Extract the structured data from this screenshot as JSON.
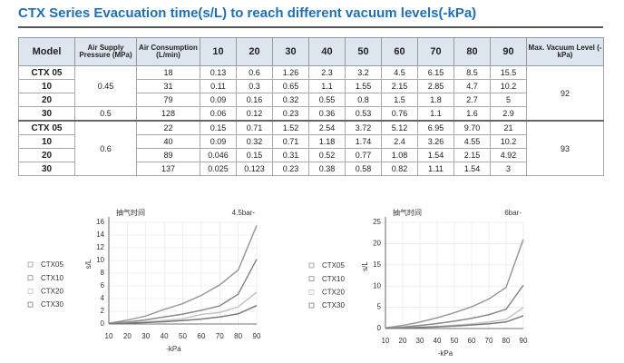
{
  "title": "CTX Series Evacuation time(s/L) to reach different vacuum levels(-kPa)",
  "table": {
    "header": [
      "Model",
      "Air Supply Pressure (MPa)",
      "Air Consumption (L/min)",
      "10",
      "20",
      "30",
      "40",
      "50",
      "60",
      "70",
      "80",
      "90",
      "Max. Vacuum Level (-kPa)"
    ],
    "rows": [
      [
        "CTX 05",
        "0.45",
        "18",
        "0.13",
        "0.6",
        "1.26",
        "2.3",
        "3.2",
        "4.5",
        "6.15",
        "8.5",
        "15.5",
        "92"
      ],
      [
        "10",
        null,
        "31",
        "0.11",
        "0.3",
        "0.65",
        "1.1",
        "1.55",
        "2.15",
        "2.85",
        "4.7",
        "10.2",
        null
      ],
      [
        "20",
        null,
        "79",
        "0.09",
        "0.16",
        "0.32",
        "0.55",
        "0.8",
        "1.5",
        "1.8",
        "2.7",
        "5",
        null
      ],
      [
        "30",
        "0.5",
        "128",
        "0.06",
        "0.12",
        "0.23",
        "0.36",
        "0.53",
        "0.76",
        "1.1",
        "1.6",
        "2.9",
        null
      ],
      [
        "CTX 05",
        "0.6",
        "22",
        "0.15",
        "0.71",
        "1.52",
        "2.54",
        "3.72",
        "5.12",
        "6.95",
        "9.70",
        "21",
        "93"
      ],
      [
        "10",
        null,
        "40",
        "0.09",
        "0.32",
        "0.71",
        "1.18",
        "1.74",
        "2.4",
        "3.26",
        "4.55",
        "10.2",
        null
      ],
      [
        "20",
        null,
        "89",
        "0.046",
        "0.15",
        "0.31",
        "0.52",
        "0.77",
        "1.08",
        "1.54",
        "2.15",
        "4.92",
        null
      ],
      [
        "30",
        null,
        "137",
        "0.025",
        "0.123",
        "0.23",
        "0.38",
        "0.58",
        "0.82",
        "1.11",
        "1.54",
        "3",
        null
      ]
    ]
  },
  "chart_data": [
    {
      "type": "line",
      "title": "抽气时间",
      "subtitle": "4.5bar-",
      "xlabel": "-kPa",
      "ylabel": "s/L",
      "x": [
        10,
        20,
        30,
        40,
        50,
        60,
        70,
        80,
        90
      ],
      "xlim": [
        10,
        90
      ],
      "xticks": [
        10,
        20,
        30,
        40,
        50,
        60,
        70,
        80,
        90
      ],
      "ylim": [
        0,
        16
      ],
      "yticks": [
        0,
        2,
        4,
        6,
        8,
        10,
        12,
        14,
        16
      ],
      "grid": true,
      "series": [
        {
          "name": "CTX05",
          "color": "#9a9a9a",
          "values": [
            0.13,
            0.6,
            1.26,
            2.3,
            3.2,
            4.5,
            6.15,
            8.5,
            15.5
          ]
        },
        {
          "name": "CTX10",
          "color": "#8a8a8a",
          "values": [
            0.11,
            0.3,
            0.65,
            1.1,
            1.55,
            2.15,
            2.85,
            4.7,
            10.2
          ]
        },
        {
          "name": "CTX20",
          "color": "#c4c4c4",
          "values": [
            0.09,
            0.16,
            0.32,
            0.55,
            0.8,
            1.5,
            1.8,
            2.7,
            5
          ]
        },
        {
          "name": "CTX30",
          "color": "#7a7a7a",
          "values": [
            0.06,
            0.12,
            0.23,
            0.36,
            0.53,
            0.76,
            1.1,
            1.6,
            2.9
          ]
        }
      ]
    },
    {
      "type": "line",
      "title": "抽气时间",
      "subtitle": "6bar-",
      "xlabel": "-kPa",
      "ylabel": "s/L",
      "x": [
        10,
        20,
        30,
        40,
        50,
        60,
        70,
        80,
        90
      ],
      "xlim": [
        10,
        90
      ],
      "xticks": [
        10,
        20,
        30,
        40,
        50,
        60,
        70,
        80,
        90
      ],
      "ylim": [
        0,
        25
      ],
      "yticks": [
        0,
        5,
        10,
        15,
        20,
        25
      ],
      "grid": true,
      "series": [
        {
          "name": "CTX05",
          "color": "#9a9a9a",
          "values": [
            0.15,
            0.71,
            1.52,
            2.54,
            3.72,
            5.12,
            6.95,
            9.7,
            21
          ]
        },
        {
          "name": "CTX10",
          "color": "#8a8a8a",
          "values": [
            0.09,
            0.32,
            0.71,
            1.18,
            1.74,
            2.4,
            3.26,
            4.55,
            10.2
          ]
        },
        {
          "name": "CTX20",
          "color": "#c4c4c4",
          "values": [
            0.046,
            0.15,
            0.31,
            0.52,
            0.77,
            1.08,
            1.54,
            2.15,
            4.92
          ]
        },
        {
          "name": "CTX30",
          "color": "#7a7a7a",
          "values": [
            0.025,
            0.123,
            0.23,
            0.38,
            0.58,
            0.82,
            1.11,
            1.54,
            3
          ]
        }
      ]
    }
  ]
}
